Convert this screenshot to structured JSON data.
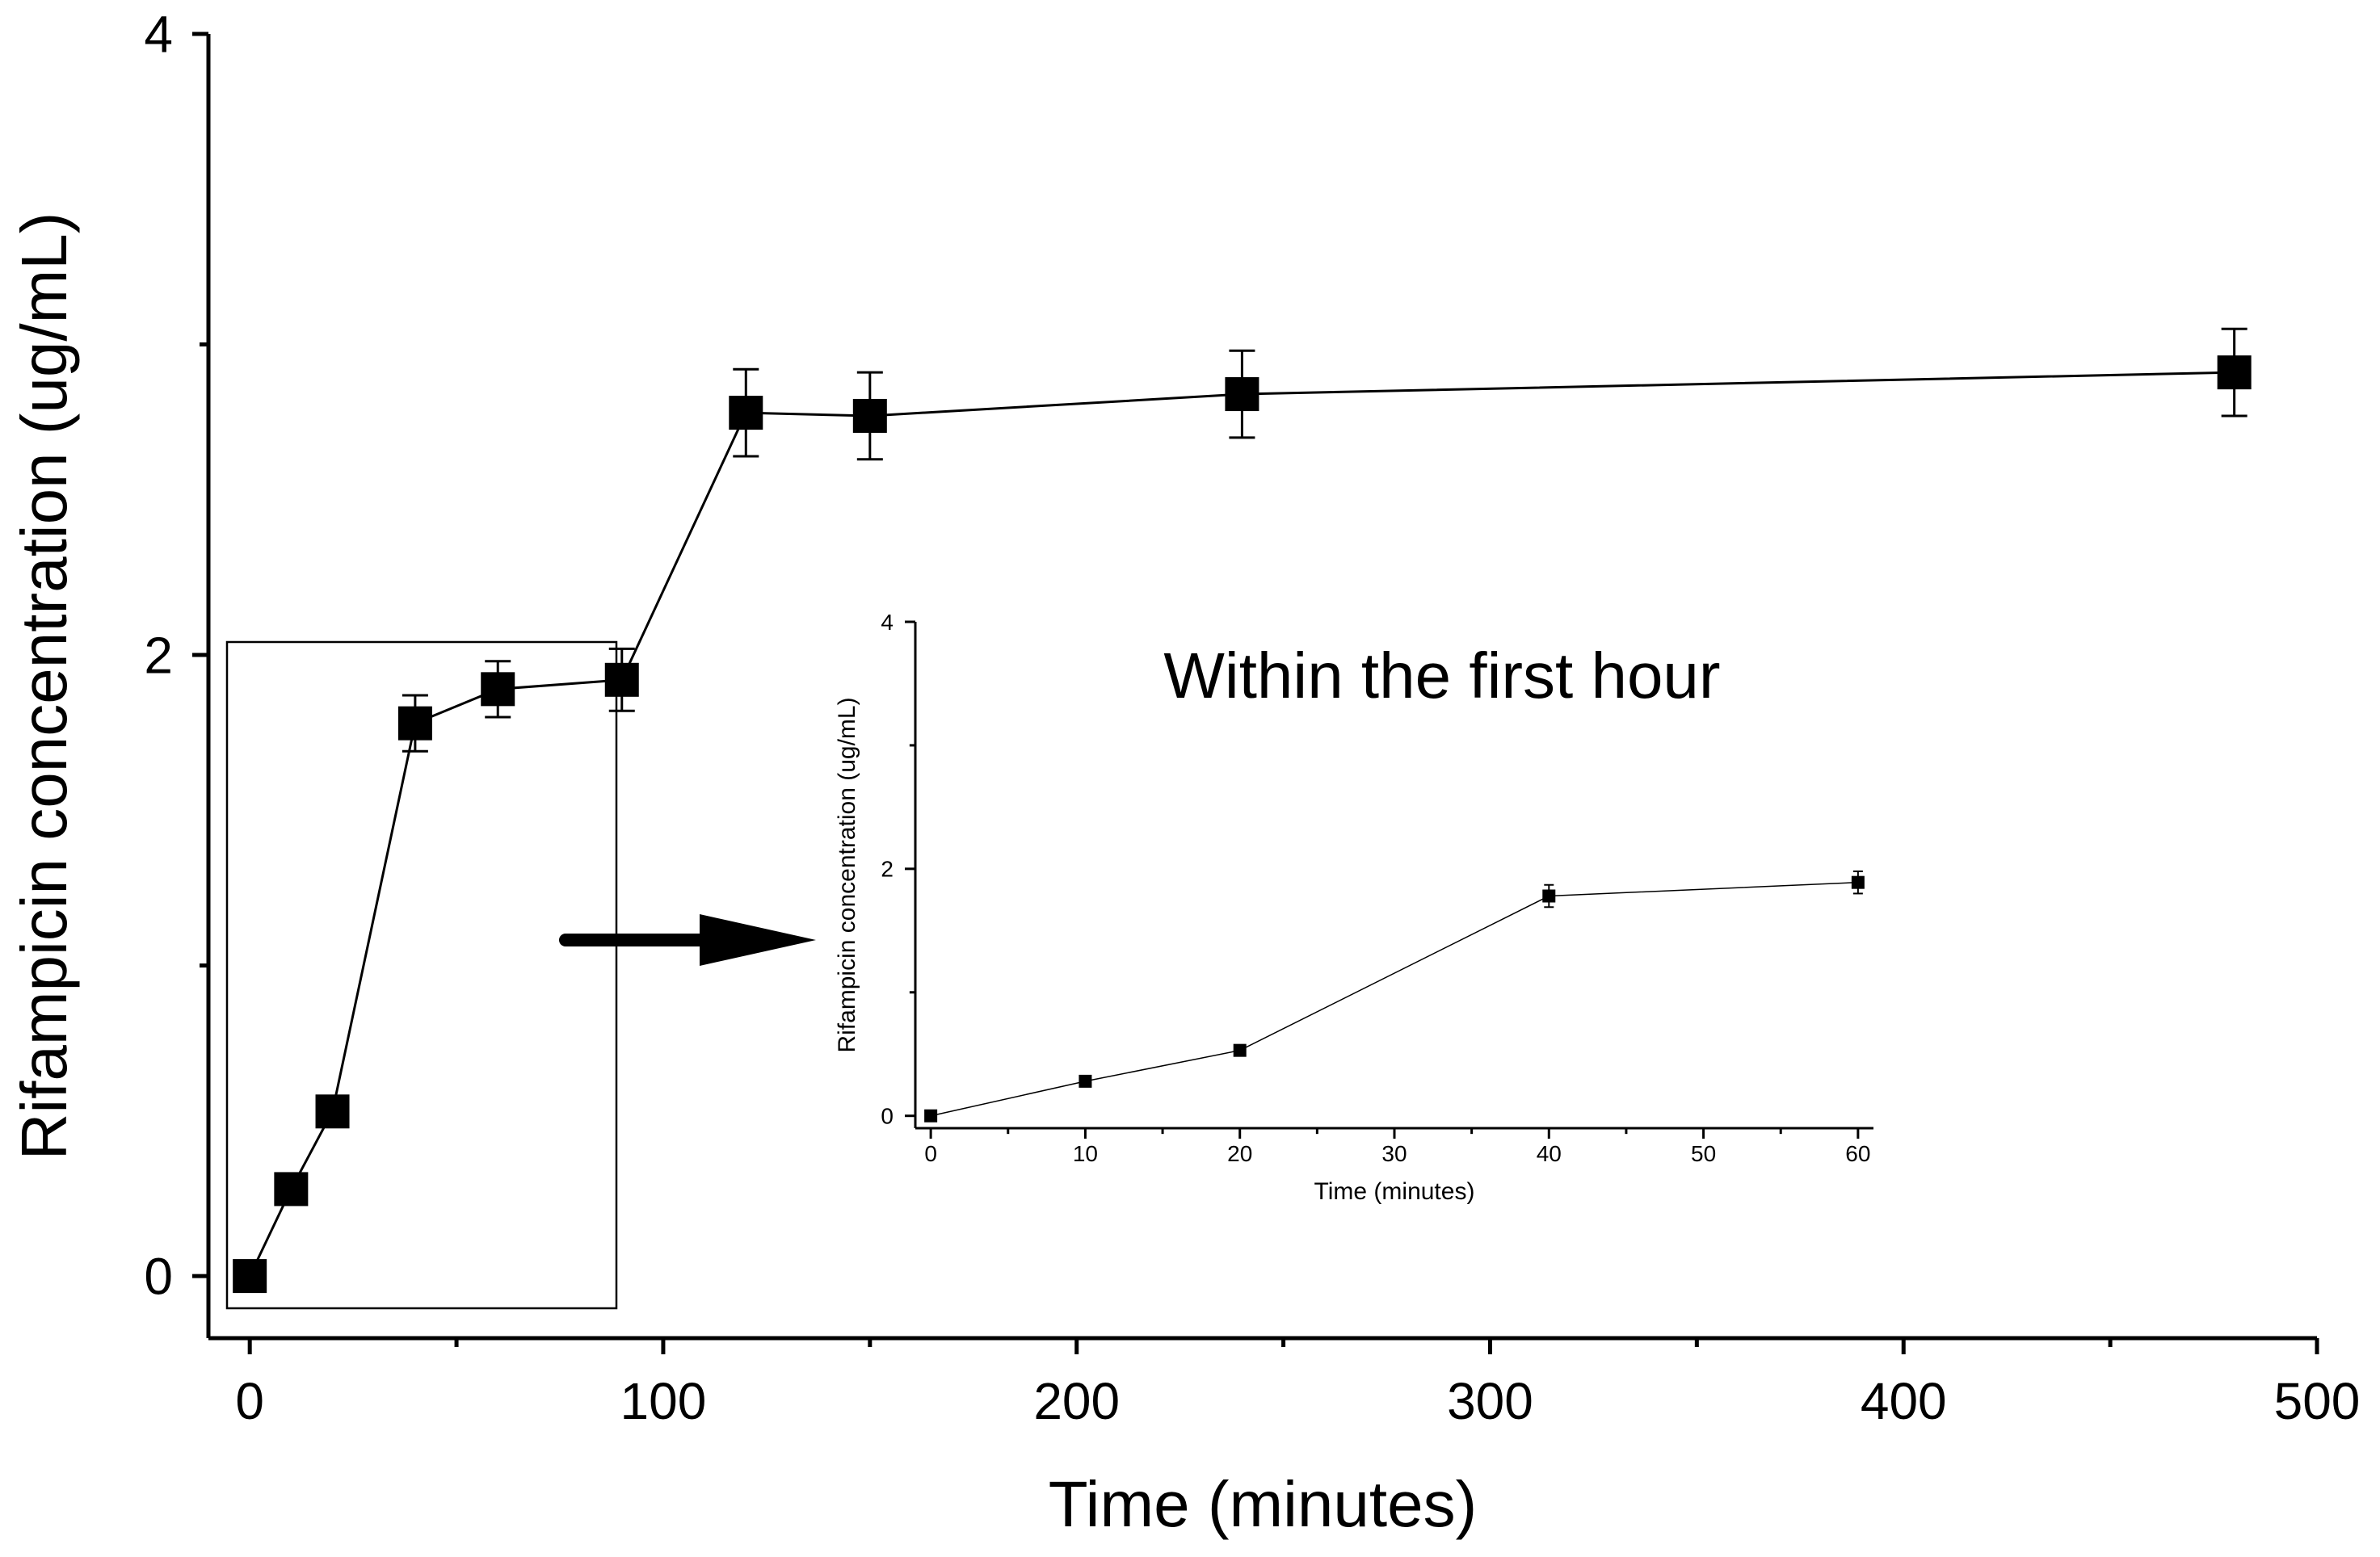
{
  "chart_data": [
    {
      "type": "line",
      "role": "main",
      "title": "",
      "xlabel": "Time (minutes)",
      "ylabel": "Rifampicin concentration (ug/mL)",
      "xlim": [
        -10,
        500
      ],
      "ylim": [
        -0.2,
        4
      ],
      "x_ticks": [
        0,
        100,
        200,
        300,
        400,
        500
      ],
      "y_ticks": [
        0,
        2,
        4
      ],
      "grid": false,
      "series": [
        {
          "x": [
            0,
            10,
            20,
            40,
            60,
            90,
            120,
            150,
            240,
            480
          ],
          "y": [
            0,
            0.28,
            0.53,
            1.78,
            1.89,
            1.92,
            2.78,
            2.77,
            2.84,
            2.91
          ],
          "err": [
            0,
            0,
            0,
            0.09,
            0.09,
            0.1,
            0.14,
            0.14,
            0.14,
            0.14
          ]
        }
      ]
    },
    {
      "type": "line",
      "role": "inset",
      "title": "Within the first hour",
      "xlabel": "Time (minutes)",
      "ylabel": "Rifampicin concentration (ug/mL)",
      "xlim": [
        -1,
        61
      ],
      "ylim": [
        -0.1,
        4
      ],
      "x_ticks": [
        0,
        10,
        20,
        30,
        40,
        50,
        60
      ],
      "y_ticks": [
        0,
        2,
        4
      ],
      "grid": false,
      "series": [
        {
          "x": [
            0,
            10,
            20,
            40,
            60
          ],
          "y": [
            0,
            0.28,
            0.53,
            1.78,
            1.89
          ],
          "err": [
            0,
            0,
            0,
            0.09,
            0.09
          ]
        }
      ]
    }
  ]
}
